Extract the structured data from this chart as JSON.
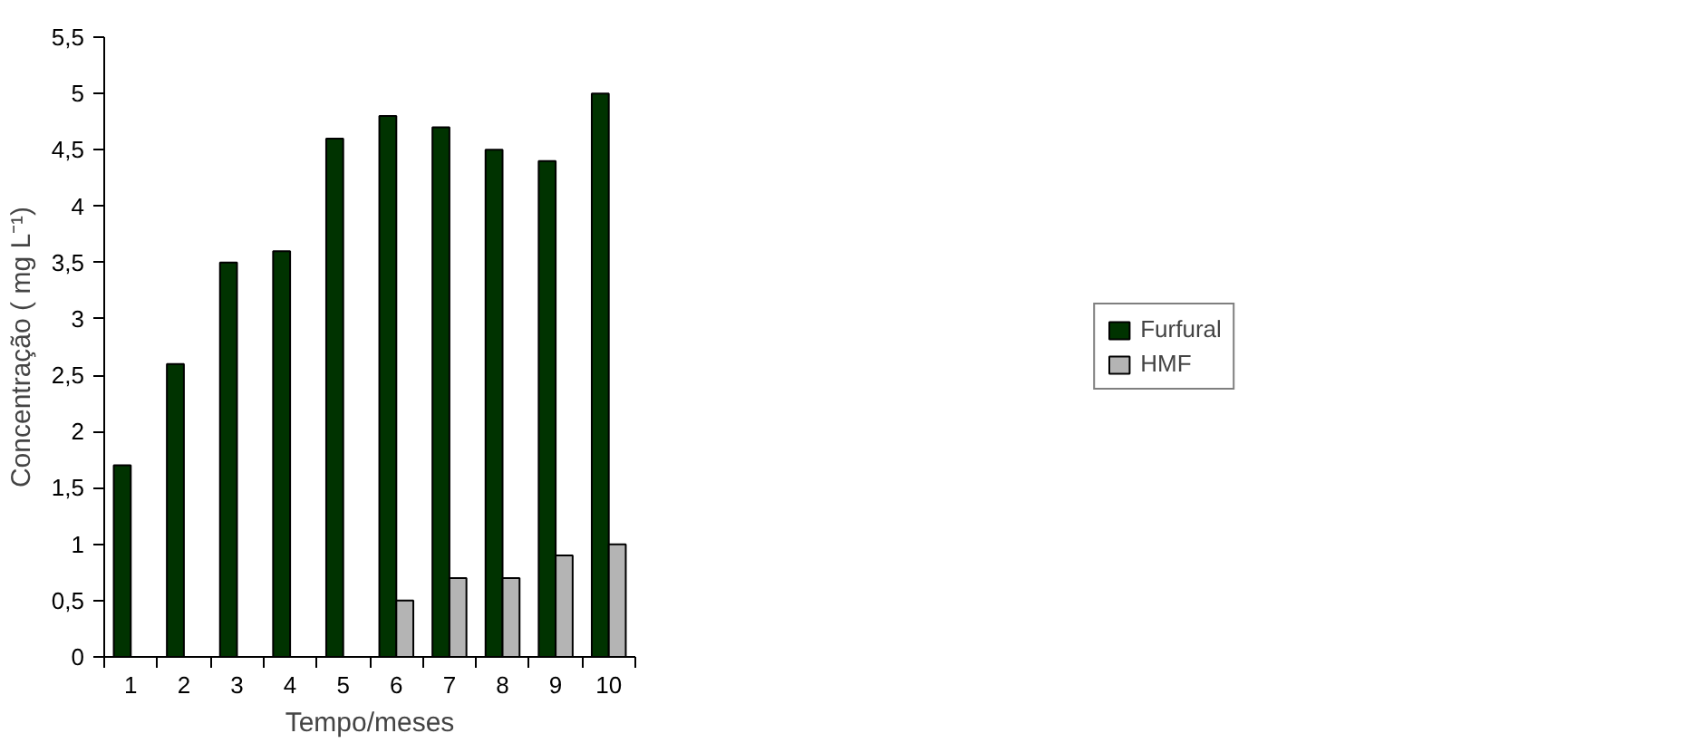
{
  "chart_data": {
    "type": "bar",
    "xlabel": "Tempo/meses",
    "ylabel": "Concentração ( mg L⁻¹)",
    "categories": [
      "1",
      "2",
      "3",
      "4",
      "5",
      "6",
      "7",
      "8",
      "9",
      "10"
    ],
    "series": [
      {
        "name": "Furfural",
        "color": "#003300",
        "values": [
          1.7,
          2.6,
          3.5,
          3.6,
          4.6,
          4.8,
          4.7,
          4.5,
          4.4,
          5.0
        ]
      },
      {
        "name": "HMF",
        "color": "#b4b4b4",
        "values": [
          null,
          null,
          null,
          null,
          null,
          0.5,
          0.7,
          0.7,
          0.9,
          1.0
        ]
      }
    ],
    "ylim": [
      0,
      5.5
    ],
    "yticks": [
      0,
      {
        "value": 0.5,
        "label": "0,5"
      },
      1,
      {
        "value": 1.5,
        "label": "1,5"
      },
      2,
      {
        "value": 2.5,
        "label": "2,5"
      },
      3,
      {
        "value": 3.5,
        "label": "3,5"
      },
      4,
      {
        "value": 4.5,
        "label": "4,5"
      },
      5,
      {
        "value": 5.5,
        "label": "5,5"
      }
    ],
    "legend": "right",
    "grid": false
  }
}
